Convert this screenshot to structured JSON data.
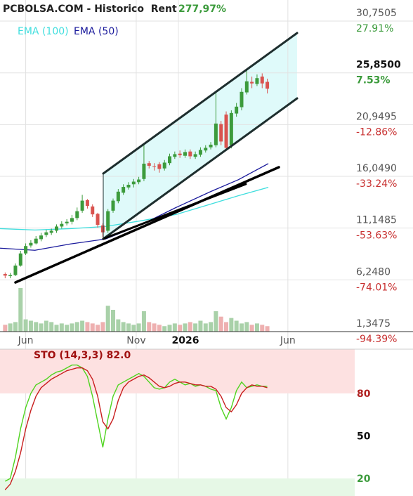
{
  "chart_data": [
    {
      "type": "candlestick",
      "title": "PCBOLSA.COM - Historico  Rent",
      "title_value": "277,97%",
      "up_color": "#3c9b3c",
      "down_color": "#d9534f",
      "volume_up_color": "#a9d1a9",
      "volume_down_color": "#eeb0b0",
      "x": [
        0,
        1,
        2,
        3,
        4,
        5,
        6,
        7,
        8,
        9,
        10,
        11,
        12,
        13,
        14,
        15,
        16,
        17,
        18,
        19,
        20,
        21,
        22,
        23,
        24,
        25,
        26,
        27,
        28,
        29,
        30,
        31,
        32,
        33,
        34,
        35,
        36,
        37,
        38,
        39,
        40,
        41,
        42,
        43,
        44,
        45,
        46,
        47,
        48,
        49,
        50,
        51
      ],
      "open": [
        6.8,
        6.6,
        6.7,
        7.6,
        8.75,
        9.5,
        9.7,
        10.1,
        10.5,
        10.7,
        10.9,
        11.3,
        11.6,
        11.75,
        12.1,
        12.8,
        13.8,
        13.2,
        12.5,
        11.4,
        10.9,
        12.8,
        13.7,
        14.5,
        15.0,
        15.3,
        15.5,
        15.8,
        17.3,
        17.0,
        17.2,
        16.8,
        17.3,
        17.9,
        18.2,
        18.0,
        18.4,
        17.9,
        18.1,
        18.5,
        18.8,
        19.0,
        21.0,
        21.9,
        19.0,
        22.0,
        22.6,
        24.0,
        25.0,
        24.8,
        25.5,
        25.0
      ],
      "high": [
        6.95,
        6.9,
        7.8,
        9.0,
        9.7,
        10.0,
        10.4,
        10.7,
        11.0,
        11.1,
        11.5,
        11.8,
        12.0,
        12.4,
        13.1,
        14.3,
        13.9,
        13.4,
        12.6,
        11.6,
        12.95,
        13.95,
        14.85,
        15.3,
        15.5,
        15.8,
        16.0,
        19.1,
        17.5,
        17.3,
        17.4,
        17.6,
        18.2,
        18.4,
        18.5,
        18.6,
        18.6,
        18.4,
        18.8,
        19.0,
        19.3,
        24.1,
        21.3,
        22.2,
        22.3,
        23.0,
        24.4,
        26.1,
        25.5,
        25.7,
        25.8,
        25.3
      ],
      "low": [
        6.4,
        6.4,
        6.6,
        7.5,
        8.6,
        9.3,
        9.6,
        9.9,
        10.3,
        10.5,
        10.7,
        11.1,
        11.4,
        11.5,
        11.9,
        12.6,
        13.0,
        12.2,
        11.2,
        10.3,
        10.7,
        12.6,
        13.5,
        14.3,
        14.8,
        15.0,
        15.3,
        15.6,
        16.8,
        16.6,
        16.4,
        16.6,
        17.1,
        17.7,
        17.8,
        17.8,
        17.7,
        17.7,
        17.9,
        18.3,
        18.6,
        18.8,
        19.0,
        18.5,
        18.7,
        21.7,
        22.3,
        23.8,
        24.4,
        24.6,
        24.4,
        23.9
      ],
      "close": [
        6.65,
        6.7,
        7.6,
        8.75,
        9.45,
        9.75,
        10.15,
        10.45,
        10.75,
        10.9,
        11.3,
        11.55,
        11.75,
        12.1,
        12.75,
        13.75,
        13.25,
        12.45,
        11.45,
        10.75,
        12.75,
        13.75,
        14.6,
        15.05,
        15.25,
        15.55,
        15.75,
        17.25,
        17.05,
        16.95,
        16.75,
        17.35,
        17.95,
        18.15,
        18.05,
        18.35,
        17.95,
        18.15,
        18.55,
        18.75,
        19.05,
        21.05,
        19.35,
        18.75,
        22.05,
        22.65,
        24.05,
        25.05,
        24.85,
        25.35,
        24.85,
        24.35
      ],
      "volume": [
        10,
        12,
        14,
        64,
        18,
        16,
        14,
        12,
        16,
        14,
        10,
        12,
        10,
        12,
        14,
        16,
        14,
        12,
        10,
        14,
        38,
        32,
        18,
        14,
        12,
        10,
        12,
        30,
        14,
        12,
        10,
        8,
        10,
        12,
        10,
        12,
        14,
        12,
        16,
        12,
        14,
        30,
        22,
        14,
        20,
        16,
        12,
        14,
        10,
        12,
        10,
        8
      ],
      "overlays": [
        {
          "name": "EMA (100)",
          "color": "#3fdede",
          "x": [
            -1,
            5.8,
            12.7,
            19.5,
            26.3,
            33.2,
            40,
            45.4,
            51.2
          ],
          "values": [
            11.1,
            10.97,
            11.1,
            11.3,
            11.83,
            12.43,
            13.42,
            14.22,
            15.01
          ]
        },
        {
          "name": "EMA (50)",
          "color": "#1a1a9c",
          "x": [
            -1,
            5.8,
            12.7,
            19.5,
            26.3,
            33.2,
            40,
            45.4,
            51.2
          ],
          "values": [
            9.25,
            9.05,
            9.65,
            10.11,
            11.43,
            13.09,
            14.61,
            15.74,
            17.26
          ]
        }
      ],
      "xlim": [
        -1,
        68
      ],
      "xticks": [
        {
          "value": 4,
          "label": "Jun"
        },
        {
          "value": 25.5,
          "label": "Nov"
        },
        {
          "value": 33.7,
          "label": "2026"
        },
        {
          "value": 55,
          "label": "Jun"
        }
      ],
      "ylim": [
        1.3475,
        32.75
      ],
      "yticks": [
        {
          "value": 30.7505,
          "label": "30,7505"
        },
        {
          "value": 25.85,
          "label": "25,8500"
        },
        {
          "value": 20.9495,
          "label": "20,9495"
        },
        {
          "value": 16.049,
          "label": "16,0490"
        },
        {
          "value": 11.1485,
          "label": "11,1485"
        },
        {
          "value": 6.248,
          "label": "6,2480"
        },
        {
          "value": 1.3475,
          "label": "1,3475"
        }
      ],
      "y2lim": [
        -94.39,
        36.2
      ],
      "y2ticks": [
        {
          "value": 27.91,
          "label": "27.91%"
        },
        {
          "value": 7.53,
          "label": "7.53%"
        },
        {
          "value": -12.86,
          "label": "-12.86%"
        },
        {
          "value": -33.24,
          "label": "-33.24%"
        },
        {
          "value": -53.63,
          "label": "-53.63%"
        },
        {
          "value": -74.01,
          "label": "-74.01%"
        },
        {
          "value": -94.39,
          "label": "-94.39%"
        }
      ],
      "grid": true
    },
    {
      "type": "line",
      "title": "STO (14,3,3) 82.0",
      "series": [
        {
          "color": "#4fd41f",
          "values": [
            18,
            20,
            35,
            55,
            70,
            80,
            86,
            88,
            90,
            93,
            95,
            96,
            98,
            100,
            100,
            98,
            92,
            78,
            60,
            42,
            62,
            78,
            86,
            88,
            90,
            92,
            94,
            92,
            88,
            84,
            83,
            84,
            88,
            90,
            88,
            86,
            87,
            85,
            86,
            85,
            83,
            82,
            70,
            62,
            70,
            82,
            88,
            84,
            85,
            86,
            85,
            85
          ]
        },
        {
          "color": "#c81e1e",
          "values": [
            12,
            16,
            25,
            38,
            55,
            68,
            78,
            84,
            87,
            90,
            92,
            94,
            96,
            97,
            98,
            98,
            96,
            90,
            78,
            60,
            55,
            62,
            75,
            84,
            88,
            90,
            92,
            93,
            91,
            88,
            85,
            84,
            85,
            87,
            88,
            88,
            87,
            86,
            86,
            85,
            85,
            83,
            78,
            70,
            67,
            72,
            80,
            84,
            86,
            85,
            85,
            84
          ]
        }
      ],
      "bands": [
        {
          "from": 80,
          "to": 111.2,
          "color": "#fde1e1"
        },
        {
          "from": 7.6,
          "to": 20,
          "color": "#e6f8e6"
        }
      ],
      "ylim": [
        7.6,
        111.2
      ],
      "yticks": [
        80,
        50,
        20
      ]
    }
  ]
}
